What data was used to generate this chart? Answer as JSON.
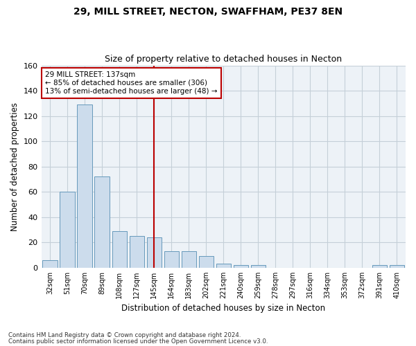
{
  "title1": "29, MILL STREET, NECTON, SWAFFHAM, PE37 8EN",
  "title2": "Size of property relative to detached houses in Necton",
  "xlabel": "Distribution of detached houses by size in Necton",
  "ylabel": "Number of detached properties",
  "categories": [
    "32sqm",
    "51sqm",
    "70sqm",
    "89sqm",
    "108sqm",
    "127sqm",
    "145sqm",
    "164sqm",
    "183sqm",
    "202sqm",
    "221sqm",
    "240sqm",
    "259sqm",
    "278sqm",
    "297sqm",
    "316sqm",
    "334sqm",
    "353sqm",
    "372sqm",
    "391sqm",
    "410sqm"
  ],
  "values": [
    6,
    60,
    129,
    72,
    29,
    25,
    24,
    13,
    13,
    9,
    3,
    2,
    2,
    0,
    0,
    0,
    0,
    0,
    0,
    2,
    2
  ],
  "bar_color": "#ccdcec",
  "bar_edge_color": "#6699bb",
  "vline_x": 6,
  "vline_color": "#bb0000",
  "ylim": [
    0,
    160
  ],
  "yticks": [
    0,
    20,
    40,
    60,
    80,
    100,
    120,
    140,
    160
  ],
  "annotation_title": "29 MILL STREET: 137sqm",
  "annotation_line1": "← 85% of detached houses are smaller (306)",
  "annotation_line2": "13% of semi-detached houses are larger (48) →",
  "annotation_box_color": "#ffffff",
  "annotation_box_edge": "#bb0000",
  "footer1": "Contains HM Land Registry data © Crown copyright and database right 2024.",
  "footer2": "Contains public sector information licensed under the Open Government Licence v3.0.",
  "background_color": "#edf2f7",
  "grid_color": "#c5cfd8",
  "fig_width": 6.0,
  "fig_height": 5.0,
  "dpi": 100
}
